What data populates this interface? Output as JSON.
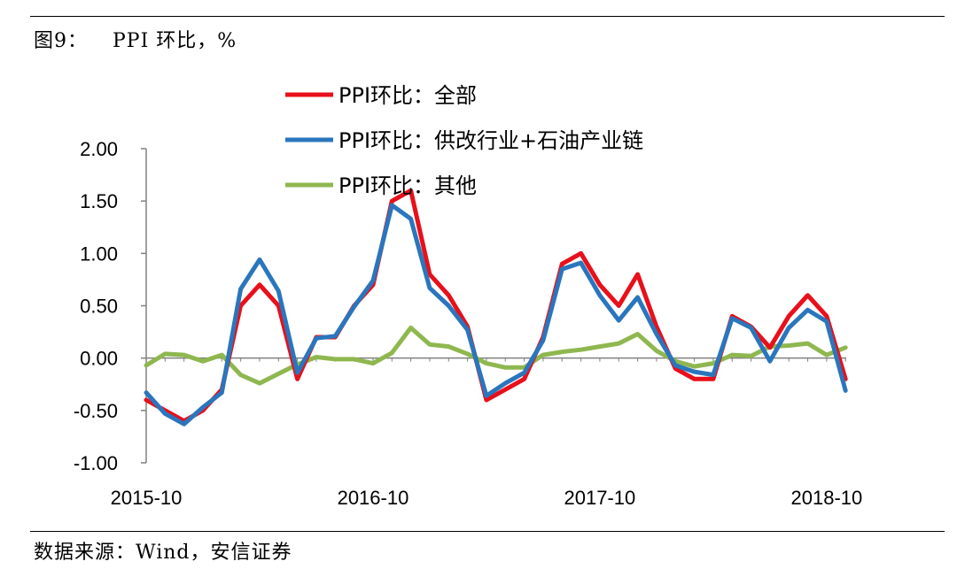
{
  "figure": {
    "number": "图9：",
    "title": "PPI 环比，%",
    "source": "数据来源：Wind，安信证券"
  },
  "chart_data": {
    "type": "line",
    "title": "PPI 环比，%",
    "xlabel": "",
    "ylabel": "",
    "ylim": [
      -1.0,
      2.0
    ],
    "y_ticks": [
      "2.00",
      "1.50",
      "1.00",
      "0.50",
      "0.00",
      "-0.50",
      "-1.00"
    ],
    "y_tick_values": [
      2.0,
      1.5,
      1.0,
      0.5,
      0.0,
      -0.5,
      -1.0
    ],
    "x_tick_labels": [
      "2015-10",
      "2016-10",
      "2017-10",
      "2018-10"
    ],
    "x_tick_index": [
      0,
      12,
      24,
      36
    ],
    "x": [
      "2015-10",
      "2015-11",
      "2015-12",
      "2016-01",
      "2016-02",
      "2016-03",
      "2016-04",
      "2016-05",
      "2016-06",
      "2016-07",
      "2016-08",
      "2016-09",
      "2016-10",
      "2016-11",
      "2016-12",
      "2017-01",
      "2017-02",
      "2017-03",
      "2017-04",
      "2017-05",
      "2017-06",
      "2017-07",
      "2017-08",
      "2017-09",
      "2017-10",
      "2017-11",
      "2017-12",
      "2018-01",
      "2018-02",
      "2018-03",
      "2018-04",
      "2018-05",
      "2018-06",
      "2018-07",
      "2018-08",
      "2018-09",
      "2018-10",
      "2018-11"
    ],
    "legend_position": "top-center",
    "grid": false,
    "series": [
      {
        "name": "PPI环比：全部",
        "color": "#e8101a",
        "values": [
          -0.4,
          -0.5,
          -0.6,
          -0.5,
          -0.3,
          0.5,
          0.7,
          0.5,
          -0.2,
          0.2,
          0.2,
          0.5,
          0.7,
          1.5,
          1.6,
          0.8,
          0.6,
          0.3,
          -0.4,
          -0.3,
          -0.2,
          0.2,
          0.9,
          1.0,
          0.7,
          0.5,
          0.8,
          0.3,
          -0.1,
          -0.2,
          -0.2,
          0.4,
          0.3,
          0.1,
          0.4,
          0.6,
          0.4,
          -0.2
        ]
      },
      {
        "name": "PPI环比：供改行业+石油产业链",
        "color": "#2a76bd",
        "values": [
          -0.33,
          -0.53,
          -0.63,
          -0.47,
          -0.33,
          0.66,
          0.94,
          0.64,
          -0.14,
          0.19,
          0.21,
          0.49,
          0.74,
          1.46,
          1.33,
          0.67,
          0.5,
          0.27,
          -0.36,
          -0.24,
          -0.14,
          0.17,
          0.85,
          0.91,
          0.6,
          0.36,
          0.58,
          0.23,
          -0.07,
          -0.13,
          -0.16,
          0.38,
          0.29,
          -0.03,
          0.29,
          0.46,
          0.35,
          -0.31
        ]
      },
      {
        "name": "PPI环比：其他",
        "color": "#8fb74f",
        "values": [
          -0.07,
          0.04,
          0.03,
          -0.03,
          0.03,
          -0.16,
          -0.24,
          -0.15,
          -0.06,
          0.01,
          -0.01,
          -0.01,
          -0.05,
          0.05,
          0.29,
          0.13,
          0.11,
          0.04,
          -0.05,
          -0.09,
          -0.09,
          0.03,
          0.06,
          0.08,
          0.11,
          0.14,
          0.23,
          0.07,
          -0.03,
          -0.08,
          -0.05,
          0.03,
          0.02,
          0.11,
          0.12,
          0.14,
          0.03,
          0.1
        ]
      }
    ]
  }
}
